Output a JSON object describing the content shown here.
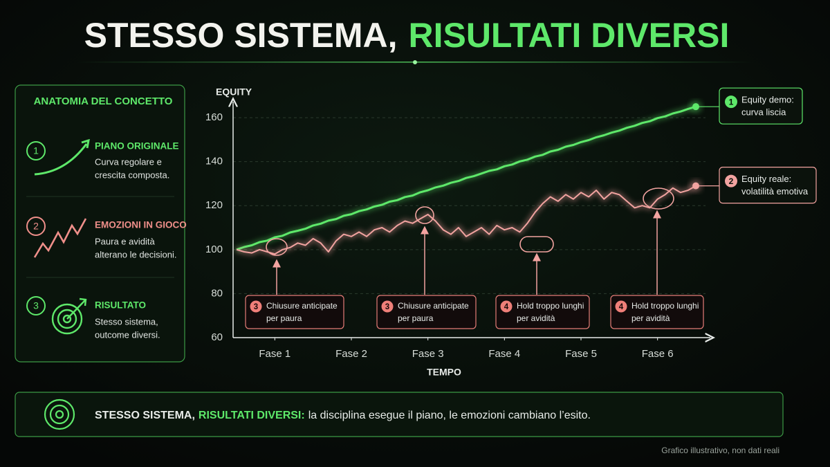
{
  "header": {
    "title_white": "STESSO SISTEMA,",
    "title_green": "RISULTATI DIVERSI"
  },
  "panel": {
    "title": "ANATOMIA DEL CONCETTO",
    "items": [
      {
        "number": "1",
        "title": "PIANO ORIGINALE",
        "lines": [
          "Curva regolare e",
          "crescita composta."
        ]
      },
      {
        "number": "2",
        "title": "EMOZIONI IN GIOCO",
        "lines": [
          "Paura e avidità",
          "alterano le decisioni."
        ]
      },
      {
        "number": "3",
        "title": "RISULTATO",
        "lines": [
          "Stesso sistema,",
          "outcome diversi."
        ]
      }
    ]
  },
  "chart_data": {
    "type": "line",
    "y_label": "EQUITY",
    "x_label": "TEMPO",
    "x": [
      0,
      1,
      2,
      3,
      4,
      5,
      6,
      7,
      8,
      9,
      10,
      11,
      12,
      13,
      14,
      15,
      16,
      17,
      18,
      19,
      20,
      21,
      22,
      23,
      24,
      25,
      26,
      27,
      28,
      29,
      30,
      31,
      32,
      33,
      34,
      35,
      36,
      37,
      38,
      39,
      40,
      41,
      42,
      43,
      44,
      45,
      46,
      47,
      48,
      49,
      50,
      51,
      52,
      53,
      54,
      55,
      56,
      57,
      58,
      59,
      60
    ],
    "xlim": [
      0,
      60
    ],
    "xticks": [
      {
        "value": 5,
        "label": "Fase 1"
      },
      {
        "value": 15,
        "label": "Fase 2"
      },
      {
        "value": 25,
        "label": "Fase 3"
      },
      {
        "value": 35,
        "label": "Fase 4"
      },
      {
        "value": 45,
        "label": "Fase 5"
      },
      {
        "value": 55,
        "label": "Fase 6"
      }
    ],
    "ylim": [
      60,
      166
    ],
    "yticks": [
      60,
      80,
      100,
      120,
      140,
      160
    ],
    "grid": true,
    "series": [
      {
        "name": "Equity demo:",
        "detail": "curva liscia",
        "badge": "1",
        "color": "#5ee86a",
        "values": [
          100,
          101.2,
          102.0,
          103.4,
          104.1,
          105.6,
          106.3,
          107.8,
          108.6,
          109.5,
          111.0,
          111.8,
          113.2,
          113.9,
          115.4,
          116.1,
          117.5,
          118.3,
          119.6,
          120.4,
          121.8,
          122.5,
          123.9,
          124.6,
          126.1,
          127.0,
          128.3,
          129.1,
          130.4,
          131.2,
          132.6,
          133.4,
          134.6,
          135.8,
          136.5,
          137.9,
          138.7,
          140.1,
          140.9,
          142.3,
          143.1,
          144.6,
          145.4,
          146.8,
          147.6,
          148.9,
          149.8,
          151.1,
          152.0,
          153.2,
          154.1,
          155.4,
          156.3,
          157.6,
          158.4,
          159.8,
          160.6,
          161.9,
          162.8,
          164.0,
          165.0
        ]
      },
      {
        "name": "Equity reale:",
        "detail": "volatilità emotiva",
        "badge": "2",
        "color": "#f2a3a0",
        "values": [
          100,
          99,
          98.5,
          100,
          99,
          98,
          100,
          101,
          103,
          102,
          105,
          103,
          99,
          104,
          107,
          106,
          108,
          106,
          109,
          110,
          108,
          111,
          113,
          112,
          114,
          116,
          113,
          109,
          107,
          110,
          106,
          108,
          110,
          107,
          111,
          109,
          110,
          108,
          112,
          117,
          121,
          124,
          122,
          125,
          123,
          126,
          124,
          127,
          123,
          126,
          125,
          122,
          119,
          120,
          119,
          123,
          125,
          128,
          126,
          127,
          129
        ]
      }
    ],
    "annotations": [
      {
        "badge": "3",
        "lines": [
          "Chiusure anticipate",
          "per paura"
        ]
      },
      {
        "badge": "3",
        "lines": [
          "Chiusure anticipate",
          "per paura"
        ]
      },
      {
        "badge": "4",
        "lines": [
          "Hold troppo lunghi",
          "per avidità"
        ]
      },
      {
        "badge": "4",
        "lines": [
          "Hold troppo lunghi",
          "per avidità"
        ]
      }
    ]
  },
  "banner": {
    "white": "STESSO SISTEMA,",
    "green": "RISULTATI DIVERSI:",
    "rest": "la disciplina esegue il piano, le emozioni cambiano l’esito."
  },
  "footnote": "Grafico illustrativo, non dati reali"
}
